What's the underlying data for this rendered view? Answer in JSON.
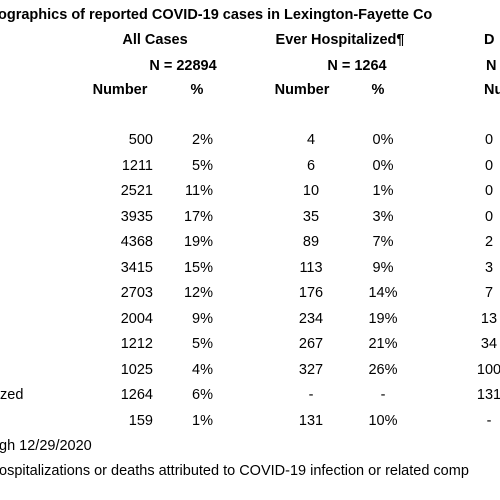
{
  "title": "ographics of reported COVID-19 cases in Lexington-Fayette Co",
  "group_headers": [
    "All Cases",
    "Ever Hospitalized¶",
    "D"
  ],
  "n_row": [
    "N = 22894",
    "N = 1264",
    "N"
  ],
  "sub_headers": [
    "Number",
    "%",
    "Number",
    "%",
    "Numb"
  ],
  "rows": [
    {
      "cells": [
        "500",
        "2%",
        "4",
        "0%",
        "0"
      ]
    },
    {
      "cells": [
        "1211",
        "5%",
        "6",
        "0%",
        "0"
      ]
    },
    {
      "cells": [
        "2521",
        "11%",
        "10",
        "1%",
        "0"
      ]
    },
    {
      "cells": [
        "3935",
        "17%",
        "35",
        "3%",
        "0"
      ]
    },
    {
      "cells": [
        "4368",
        "19%",
        "89",
        "7%",
        "2"
      ]
    },
    {
      "cells": [
        "3415",
        "15%",
        "113",
        "9%",
        "3"
      ]
    },
    {
      "cells": [
        "2703",
        "12%",
        "176",
        "14%",
        "7"
      ]
    },
    {
      "cells": [
        "2004",
        "9%",
        "234",
        "19%",
        "13"
      ]
    },
    {
      "cells": [
        "1212",
        "5%",
        "267",
        "21%",
        "34"
      ]
    },
    {
      "cells": [
        "1025",
        "4%",
        "327",
        "26%",
        "100"
      ]
    },
    {
      "label": "zed",
      "cells": [
        "1264",
        "6%",
        "-",
        "-",
        "131"
      ]
    },
    {
      "cells": [
        "159",
        "1%",
        "131",
        "10%",
        "-"
      ]
    }
  ],
  "footnotes": [
    "gh 12/29/2020",
    "ospitalizations or deaths attributed to COVID-19 infection or related comp"
  ]
}
